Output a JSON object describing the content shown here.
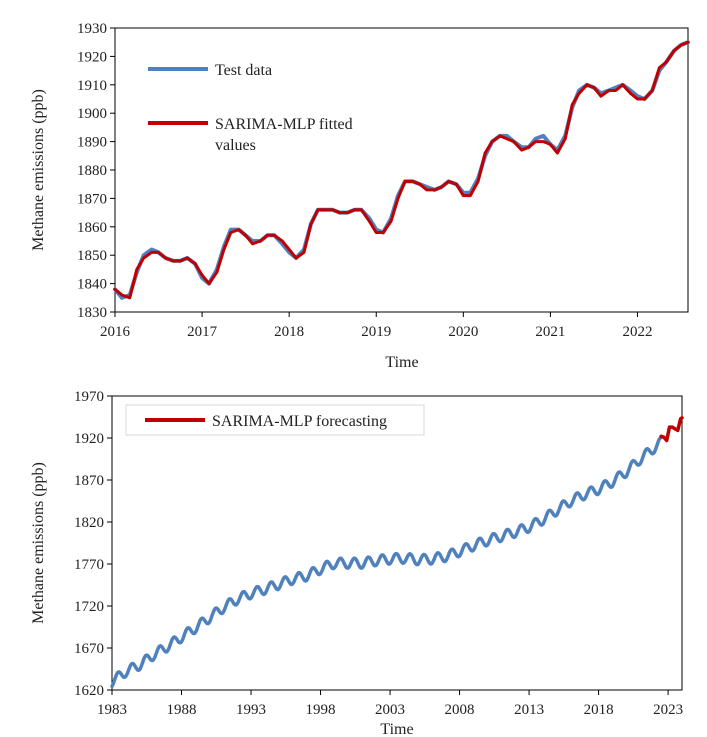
{
  "chart_data": [
    {
      "type": "line",
      "xlabel": "Time",
      "ylabel": "Methane emissions (ppb)",
      "xlim": [
        2016,
        2022.58
      ],
      "ylim": [
        1830,
        1930
      ],
      "x_ticks": [
        "2016",
        "2017",
        "2018",
        "2019",
        "2020",
        "2021",
        "2022"
      ],
      "y_ticks": [
        "1830",
        "1840",
        "1850",
        "1860",
        "1870",
        "1880",
        "1890",
        "1900",
        "1910",
        "1920",
        "1930"
      ],
      "grid": false,
      "legend": "top-left",
      "series": [
        {
          "name": "Test data",
          "color": "#4f81bd",
          "x": [
            2016.0,
            2016.08,
            2016.17,
            2016.25,
            2016.33,
            2016.42,
            2016.5,
            2016.58,
            2016.67,
            2016.75,
            2016.83,
            2016.92,
            2017.0,
            2017.08,
            2017.17,
            2017.25,
            2017.33,
            2017.42,
            2017.5,
            2017.58,
            2017.67,
            2017.75,
            2017.83,
            2017.92,
            2018.0,
            2018.08,
            2018.17,
            2018.25,
            2018.33,
            2018.42,
            2018.5,
            2018.58,
            2018.67,
            2018.75,
            2018.83,
            2018.92,
            2019.0,
            2019.08,
            2019.17,
            2019.25,
            2019.33,
            2019.42,
            2019.5,
            2019.58,
            2019.67,
            2019.75,
            2019.83,
            2019.92,
            2020.0,
            2020.08,
            2020.17,
            2020.25,
            2020.33,
            2020.42,
            2020.5,
            2020.58,
            2020.67,
            2020.75,
            2020.83,
            2020.92,
            2021.0,
            2021.08,
            2021.17,
            2021.25,
            2021.33,
            2021.42,
            2021.5,
            2021.58,
            2021.67,
            2021.75,
            2021.83,
            2021.92,
            2022.0,
            2022.08,
            2022.17,
            2022.25,
            2022.33,
            2022.42,
            2022.5,
            2022.58
          ],
          "y": [
            1838,
            1835,
            1836,
            1844,
            1850,
            1852,
            1851,
            1849,
            1848,
            1848,
            1849,
            1847,
            1842,
            1840,
            1845,
            1853,
            1859,
            1859,
            1857,
            1855,
            1855,
            1857,
            1857,
            1854,
            1851,
            1849,
            1852,
            1861,
            1866,
            1866,
            1866,
            1865,
            1865,
            1866,
            1866,
            1863,
            1859,
            1858,
            1863,
            1871,
            1876,
            1876,
            1875,
            1874,
            1873,
            1874,
            1876,
            1875,
            1872,
            1872,
            1877,
            1885,
            1890,
            1892,
            1892,
            1890,
            1888,
            1888,
            1891,
            1892,
            1889,
            1887,
            1892,
            1902,
            1908,
            1910,
            1909,
            1907,
            1908,
            1909,
            1910,
            1908,
            1906,
            1905,
            1908,
            1915,
            1918,
            1922,
            1924,
            1925
          ]
        },
        {
          "name": "SARIMA-MLP fitted values",
          "color": "#c00000",
          "x": [
            2016.0,
            2016.08,
            2016.17,
            2016.25,
            2016.33,
            2016.42,
            2016.5,
            2016.58,
            2016.67,
            2016.75,
            2016.83,
            2016.92,
            2017.0,
            2017.08,
            2017.17,
            2017.25,
            2017.33,
            2017.42,
            2017.5,
            2017.58,
            2017.67,
            2017.75,
            2017.83,
            2017.92,
            2018.0,
            2018.08,
            2018.17,
            2018.25,
            2018.33,
            2018.42,
            2018.5,
            2018.58,
            2018.67,
            2018.75,
            2018.83,
            2018.92,
            2019.0,
            2019.08,
            2019.17,
            2019.25,
            2019.33,
            2019.42,
            2019.5,
            2019.58,
            2019.67,
            2019.75,
            2019.83,
            2019.92,
            2020.0,
            2020.08,
            2020.17,
            2020.25,
            2020.33,
            2020.42,
            2020.5,
            2020.58,
            2020.67,
            2020.75,
            2020.83,
            2020.92,
            2021.0,
            2021.08,
            2021.17,
            2021.25,
            2021.33,
            2021.42,
            2021.5,
            2021.58,
            2021.67,
            2021.75,
            2021.83,
            2021.92,
            2022.0,
            2022.08,
            2022.17,
            2022.25,
            2022.33,
            2022.42,
            2022.5,
            2022.58
          ],
          "y": [
            1838,
            1836,
            1835,
            1845,
            1849,
            1851,
            1851,
            1849,
            1848,
            1848,
            1849,
            1847,
            1843,
            1840,
            1844,
            1852,
            1858,
            1859,
            1857,
            1854,
            1855,
            1857,
            1857,
            1855,
            1852,
            1849,
            1851,
            1861,
            1866,
            1866,
            1866,
            1865,
            1865,
            1866,
            1866,
            1862,
            1858,
            1858,
            1862,
            1870,
            1876,
            1876,
            1875,
            1873,
            1873,
            1874,
            1876,
            1875,
            1871,
            1871,
            1876,
            1886,
            1890,
            1892,
            1891,
            1890,
            1887,
            1888,
            1890,
            1890,
            1889,
            1886,
            1891,
            1903,
            1907,
            1910,
            1909,
            1906,
            1908,
            1908,
            1910,
            1907,
            1905,
            1905,
            1908,
            1916,
            1918,
            1922,
            1924,
            1925
          ]
        }
      ]
    },
    {
      "type": "line",
      "xlabel": "Time",
      "ylabel": "Methane emissions (ppb)",
      "xlim": [
        1983,
        2024
      ],
      "ylim": [
        1620,
        1970
      ],
      "x_ticks": [
        "1983",
        "1988",
        "1993",
        "1998",
        "2003",
        "2008",
        "2013",
        "2018",
        "2023"
      ],
      "y_ticks": [
        "1620",
        "1670",
        "1720",
        "1770",
        "1820",
        "1870",
        "1920",
        "1970"
      ],
      "grid": false,
      "legend": "top-left",
      "series": [
        {
          "color": "#4f81bd",
          "anchors_x": [
            1983,
            1984,
            1985,
            1986,
            1987,
            1988,
            1989,
            1990,
            1991,
            1992,
            1993,
            1994,
            1995,
            1996,
            1997,
            1998,
            1999,
            2000,
            2001,
            2002,
            2003,
            2004,
            2005,
            2006,
            2007,
            2008,
            2009,
            2010,
            2011,
            2012,
            2013,
            2014,
            2015,
            2016,
            2017,
            2018,
            2019,
            2020,
            2021,
            2022.5
          ],
          "anchors_y": [
            1630,
            1642,
            1650,
            1662,
            1672,
            1683,
            1694,
            1706,
            1718,
            1728,
            1735,
            1740,
            1746,
            1752,
            1756,
            1764,
            1771,
            1771,
            1771,
            1774,
            1776,
            1777,
            1775,
            1776,
            1779,
            1785,
            1792,
            1798,
            1803,
            1808,
            1814,
            1823,
            1834,
            1845,
            1853,
            1859,
            1868,
            1880,
            1895,
            1915
          ],
          "seasonal_amplitude": 6
        },
        {
          "name": "SARIMA-MLP forecasting",
          "color": "#c00000",
          "x": [
            2022.5,
            2022.7,
            2022.9,
            2023.1,
            2023.3,
            2023.5,
            2023.7,
            2023.9,
            2024.0
          ],
          "y": [
            1922,
            1921,
            1917,
            1933,
            1933,
            1931,
            1929,
            1943,
            1944
          ]
        }
      ]
    }
  ]
}
